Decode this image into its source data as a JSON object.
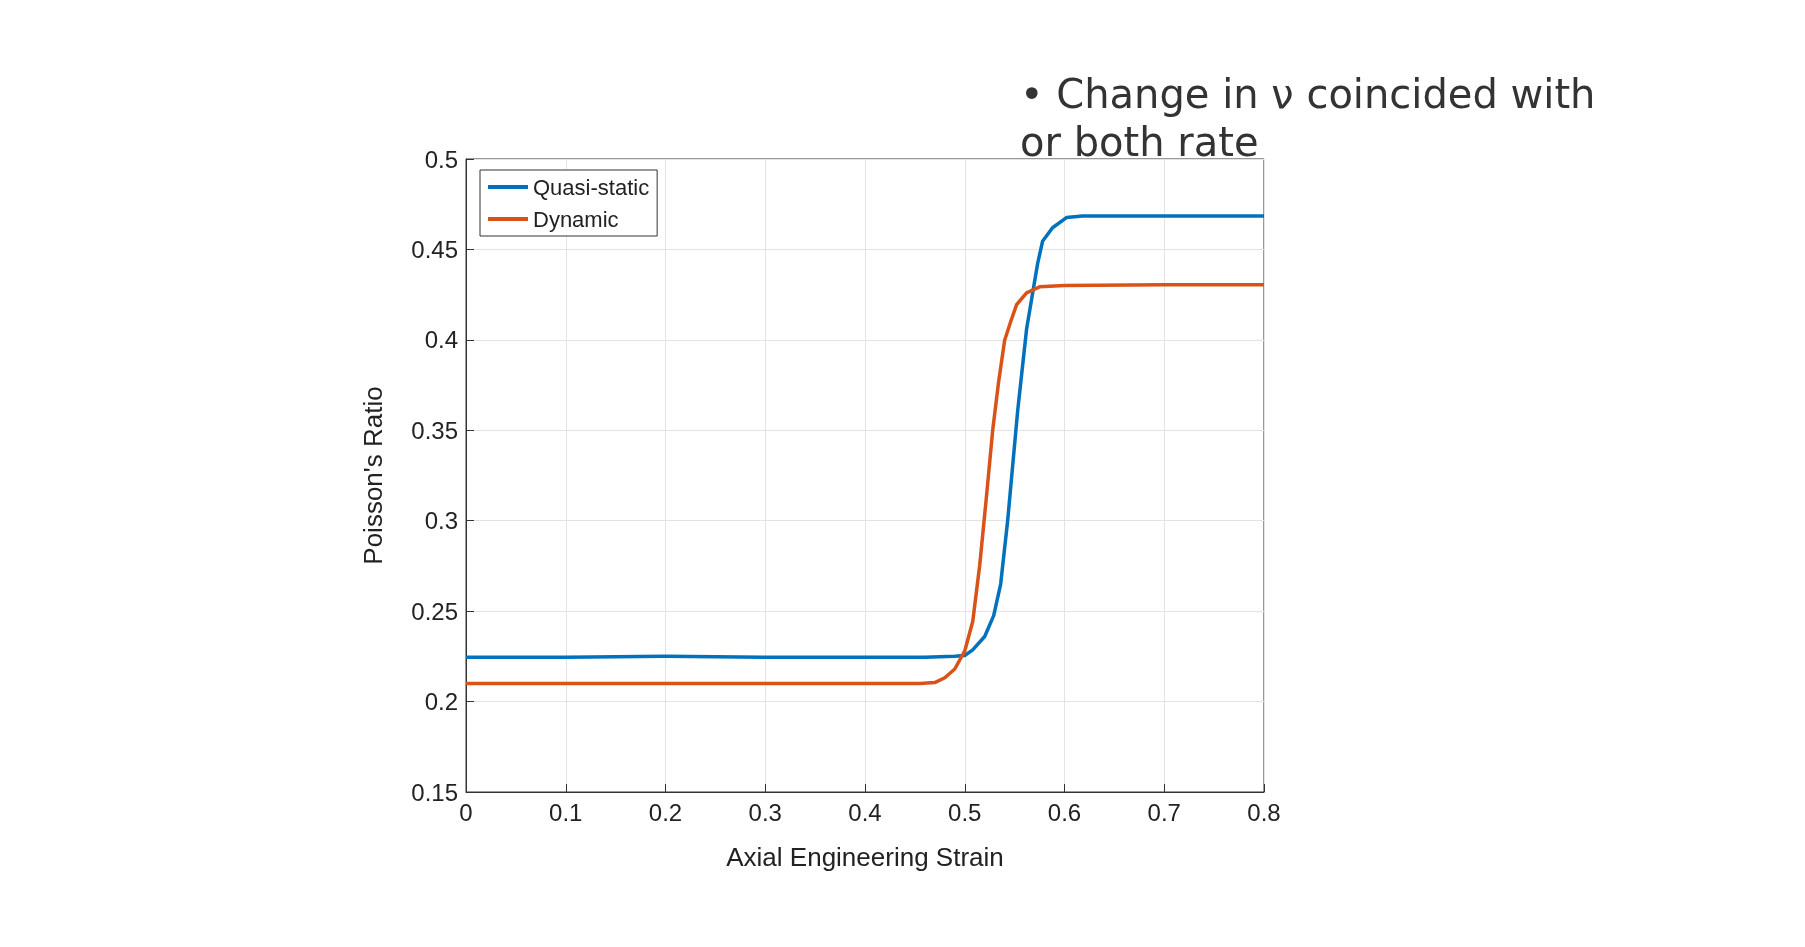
{
  "chart_data": {
    "type": "line",
    "xlabel": "Axial Engineering Strain",
    "ylabel": "Poisson's Ratio",
    "annotations": [
      "• Change in ν coincided with",
      "or both rate"
    ],
    "xlim": [
      0,
      0.8
    ],
    "xticks": [
      0,
      0.1,
      0.2,
      0.3,
      0.4,
      0.5,
      0.6,
      0.7,
      0.8
    ],
    "ylim": [
      0.15,
      0.5
    ],
    "yticks": [
      0.15,
      0.2,
      0.25,
      0.3,
      0.35,
      0.4,
      0.45,
      0.5
    ],
    "grid": true,
    "legend": "top left",
    "marker": "none",
    "line_style": "solid",
    "series": [
      {
        "name": "Quasi-static",
        "color": "#0072bd",
        "x": [
          0,
          0.1,
          0.2,
          0.3,
          0.4,
          0.46,
          0.49,
          0.5,
          0.508,
          0.52,
          0.529,
          0.536,
          0.543,
          0.553,
          0.562,
          0.573,
          0.578,
          0.588,
          0.602,
          0.618,
          0.7,
          0.8
        ],
        "values": [
          0.2245,
          0.2245,
          0.225,
          0.2245,
          0.2245,
          0.2245,
          0.225,
          0.2255,
          0.2286,
          0.236,
          0.2475,
          0.265,
          0.3,
          0.3605,
          0.406,
          0.442,
          0.4545,
          0.462,
          0.4676,
          0.4685,
          0.4685,
          0.4685
        ]
      },
      {
        "name": "Dynamic",
        "color": "#d95319",
        "x": [
          0,
          0.1,
          0.2,
          0.3,
          0.4,
          0.455,
          0.47,
          0.48,
          0.49,
          0.5,
          0.508,
          0.515,
          0.522,
          0.528,
          0.534,
          0.54,
          0.546,
          0.552,
          0.562,
          0.575,
          0.6,
          0.7,
          0.8
        ],
        "values": [
          0.21,
          0.21,
          0.21,
          0.21,
          0.21,
          0.21,
          0.2105,
          0.2132,
          0.218,
          0.228,
          0.2443,
          0.2754,
          0.3147,
          0.35,
          0.377,
          0.3998,
          0.41,
          0.4195,
          0.426,
          0.4293,
          0.43,
          0.4305,
          0.4305
        ]
      }
    ]
  }
}
